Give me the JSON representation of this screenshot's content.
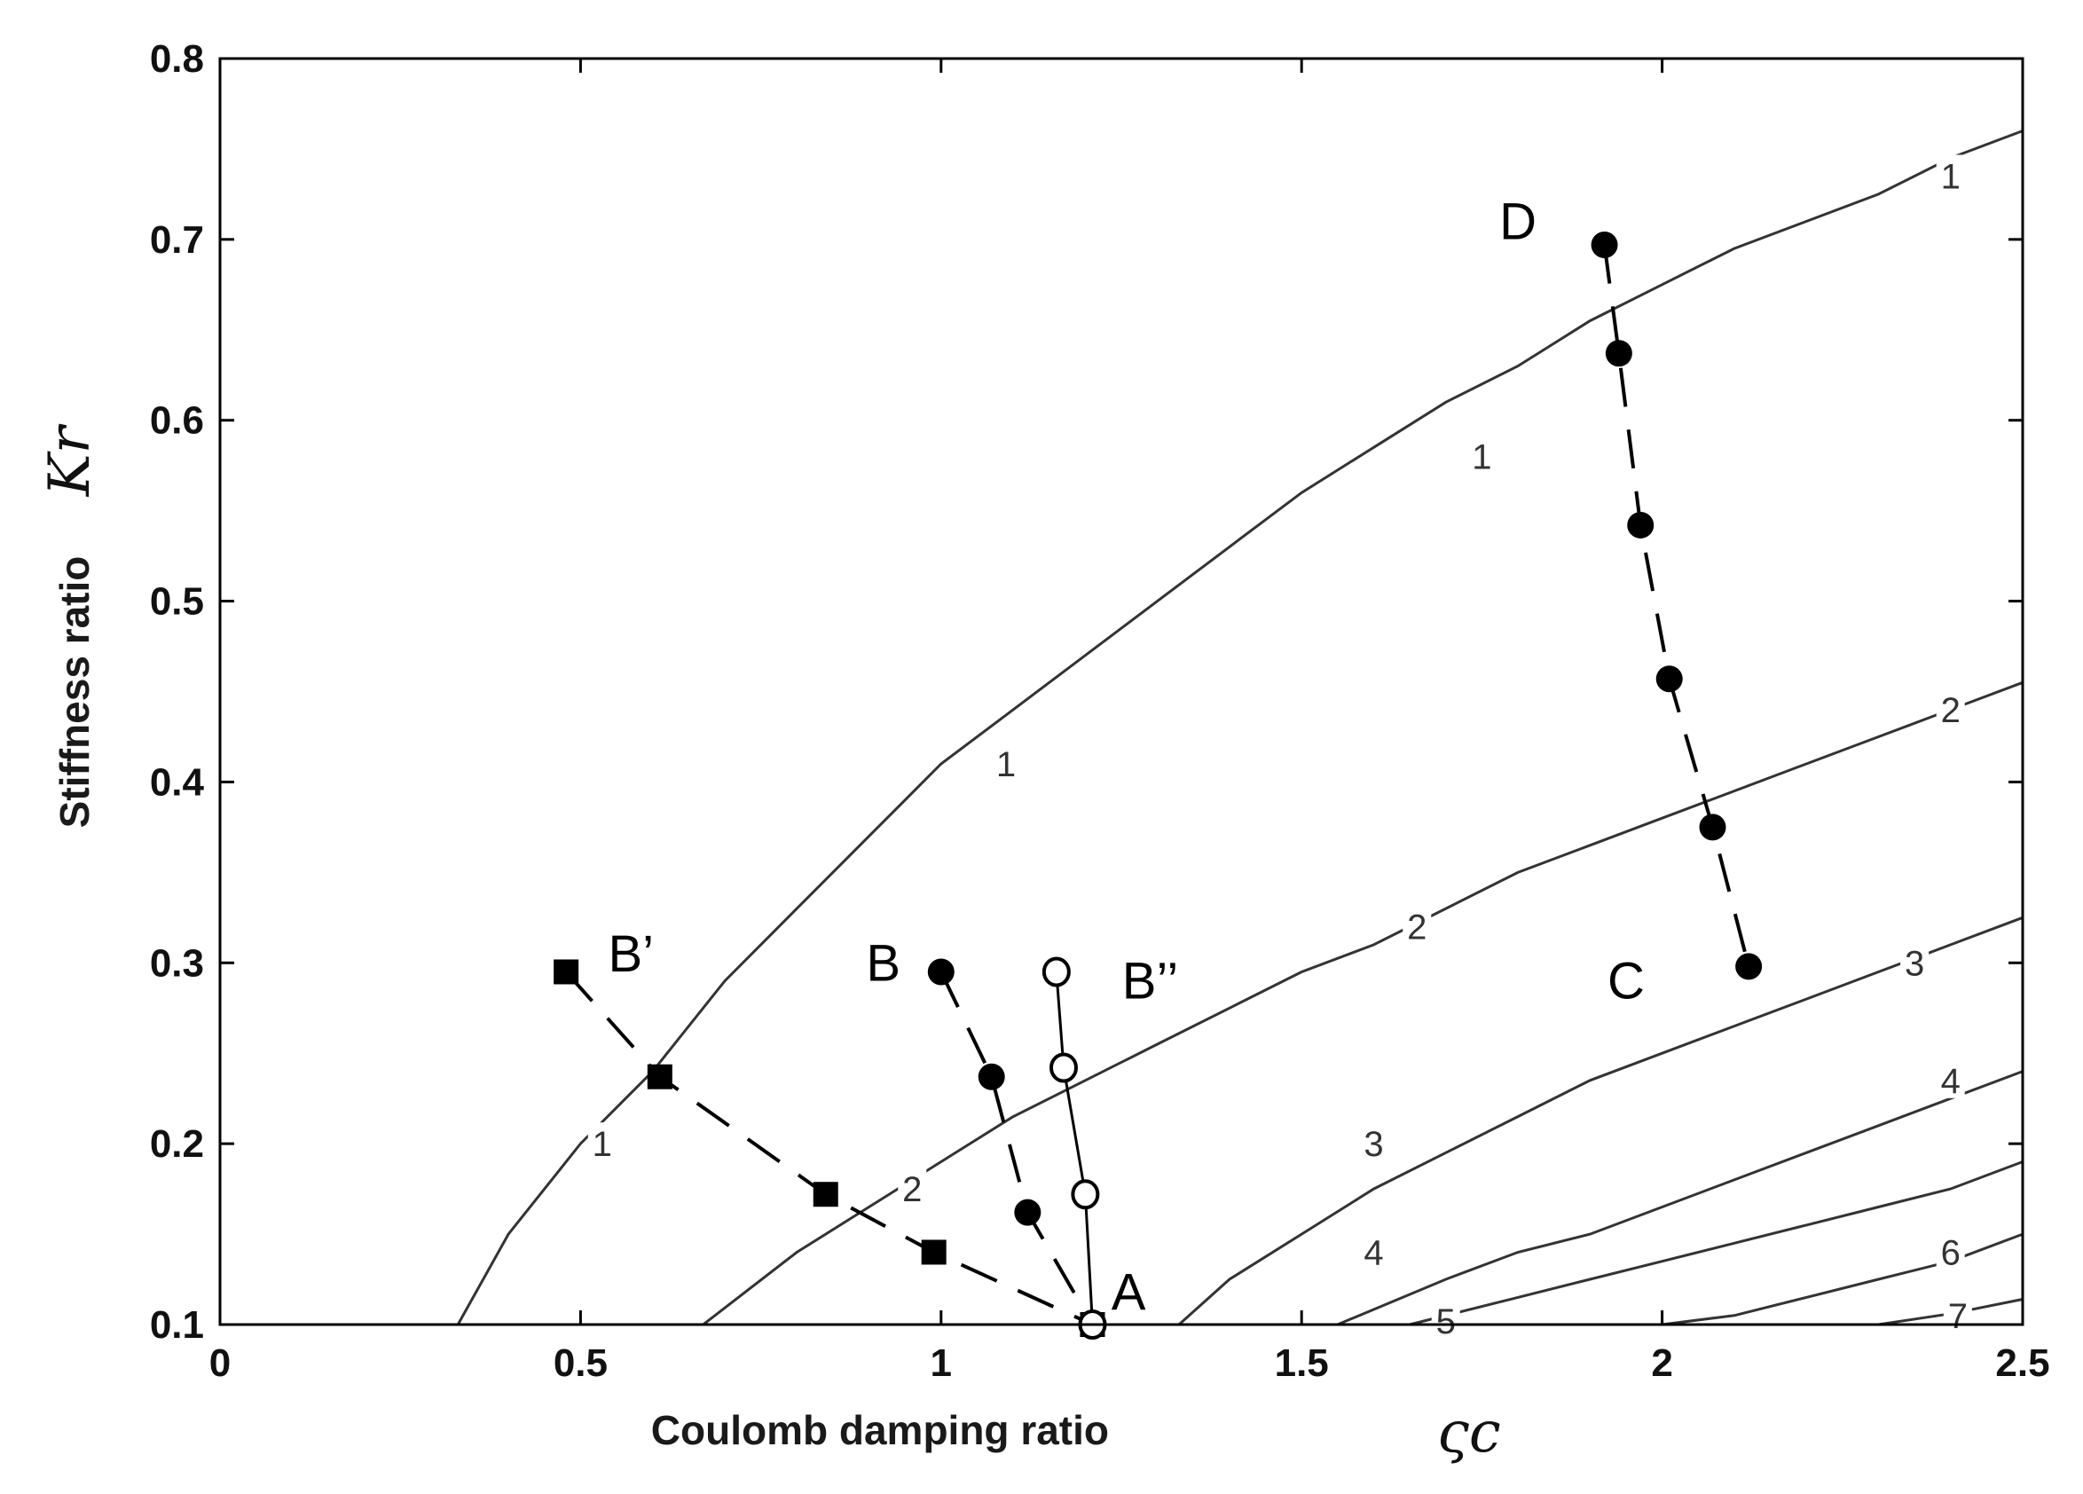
{
  "chart_data": {
    "type": "line",
    "title": "",
    "xlabel": "Coulomb damping ratio",
    "xlabel_symbol": "ςc",
    "ylabel": "Stiffness ratio",
    "ylabel_symbol": "Kr",
    "xlim": [
      0,
      2.5
    ],
    "ylim": [
      0.1,
      0.8
    ],
    "xticks": [
      0,
      0.5,
      1,
      1.5,
      2,
      2.5
    ],
    "xtick_labels": [
      "0",
      "0.5",
      "1",
      "1.5",
      "2",
      "2.5"
    ],
    "yticks": [
      0.1,
      0.2,
      0.3,
      0.4,
      0.5,
      0.6,
      0.7,
      0.8
    ],
    "ytick_labels": [
      "0.1",
      "0.2",
      "0.3",
      "0.4",
      "0.5",
      "0.6",
      "0.7",
      "0.8"
    ],
    "grid": false,
    "contours": [
      {
        "level": "1",
        "x": [
          0.33,
          0.4,
          0.5,
          0.6,
          0.7,
          0.8,
          0.9,
          1.0,
          1.1,
          1.2,
          1.3,
          1.4,
          1.5,
          1.6,
          1.7,
          1.8,
          1.9,
          2.0,
          2.1,
          2.2,
          2.3,
          2.4,
          2.5
        ],
        "y": [
          0.1,
          0.15,
          0.2,
          0.24,
          0.29,
          0.33,
          0.37,
          0.41,
          0.44,
          0.47,
          0.5,
          0.53,
          0.56,
          0.585,
          0.61,
          0.63,
          0.655,
          0.675,
          0.695,
          0.71,
          0.725,
          0.745,
          0.76
        ],
        "labels": [
          {
            "x": 0.53,
            "y": 0.2
          },
          {
            "x": 1.09,
            "y": 0.41
          },
          {
            "x": 1.75,
            "y": 0.58
          },
          {
            "x": 2.4,
            "y": 0.735
          }
        ]
      },
      {
        "level": "2",
        "x": [
          0.67,
          0.8,
          0.9,
          1.0,
          1.1,
          1.2,
          1.3,
          1.4,
          1.5,
          1.6,
          1.7,
          1.8,
          1.9,
          2.0,
          2.1,
          2.2,
          2.3,
          2.4,
          2.5
        ],
        "y": [
          0.1,
          0.14,
          0.165,
          0.19,
          0.215,
          0.235,
          0.255,
          0.275,
          0.295,
          0.31,
          0.33,
          0.35,
          0.365,
          0.38,
          0.395,
          0.41,
          0.425,
          0.44,
          0.455
        ],
        "labels": [
          {
            "x": 0.96,
            "y": 0.175
          },
          {
            "x": 1.66,
            "y": 0.32
          },
          {
            "x": 2.4,
            "y": 0.44
          }
        ]
      },
      {
        "level": "3",
        "x": [
          1.33,
          1.4,
          1.5,
          1.6,
          1.7,
          1.8,
          1.9,
          2.0,
          2.1,
          2.2,
          2.3,
          2.4,
          2.5
        ],
        "y": [
          0.1,
          0.125,
          0.15,
          0.175,
          0.195,
          0.215,
          0.235,
          0.25,
          0.265,
          0.28,
          0.295,
          0.31,
          0.325
        ],
        "labels": [
          {
            "x": 1.6,
            "y": 0.2
          },
          {
            "x": 2.35,
            "y": 0.3
          }
        ]
      },
      {
        "level": "4",
        "x": [
          1.55,
          1.7,
          1.8,
          1.9,
          2.0,
          2.1,
          2.2,
          2.3,
          2.4,
          2.5
        ],
        "y": [
          0.1,
          0.125,
          0.14,
          0.15,
          0.165,
          0.18,
          0.195,
          0.21,
          0.225,
          0.24
        ],
        "labels": [
          {
            "x": 1.6,
            "y": 0.14
          },
          {
            "x": 2.4,
            "y": 0.235
          }
        ]
      },
      {
        "level": "5",
        "x": [
          1.65,
          1.8,
          1.9,
          2.0,
          2.1,
          2.2,
          2.3,
          2.4,
          2.5
        ],
        "y": [
          0.1,
          0.115,
          0.125,
          0.135,
          0.145,
          0.155,
          0.165,
          0.175,
          0.19
        ],
        "labels": [
          {
            "x": 1.7,
            "y": 0.102
          }
        ]
      },
      {
        "level": "6",
        "x": [
          2.0,
          2.1,
          2.2,
          2.3,
          2.4,
          2.5
        ],
        "y": [
          0.1,
          0.105,
          0.115,
          0.125,
          0.135,
          0.15
        ],
        "labels": [
          {
            "x": 2.4,
            "y": 0.14
          }
        ]
      },
      {
        "level": "7",
        "x": [
          2.3,
          2.4,
          2.5
        ],
        "y": [
          0.1,
          0.106,
          0.114
        ],
        "labels": [
          {
            "x": 2.41,
            "y": 0.105
          }
        ]
      }
    ],
    "series": [
      {
        "marker": "square-filled",
        "line": "dashed",
        "x": [
          0.48,
          0.61,
          0.84,
          0.99,
          1.21
        ],
        "y": [
          0.295,
          0.237,
          0.172,
          0.14,
          0.1
        ]
      },
      {
        "marker": "circle-filled",
        "line": "dashed",
        "x": [
          1.0,
          1.07,
          1.12,
          1.21
        ],
        "y": [
          0.295,
          0.237,
          0.162,
          0.1
        ]
      },
      {
        "marker": "circle-open",
        "line": "solid",
        "x": [
          1.16,
          1.17,
          1.2,
          1.21
        ],
        "y": [
          0.295,
          0.242,
          0.172,
          0.1
        ]
      },
      {
        "marker": "circle-filled",
        "line": "dashed",
        "x": [
          1.92,
          1.94,
          1.97,
          2.01,
          2.07,
          2.12
        ],
        "y": [
          0.697,
          0.637,
          0.542,
          0.457,
          0.375,
          0.298
        ]
      }
    ],
    "point_labels": [
      {
        "text": "A",
        "x": 1.26,
        "y": 0.118
      },
      {
        "text": "B",
        "x": 0.92,
        "y": 0.3
      },
      {
        "text": "B’",
        "x": 0.57,
        "y": 0.305
      },
      {
        "text": "B’’",
        "x": 1.29,
        "y": 0.29
      },
      {
        "text": "C",
        "x": 1.95,
        "y": 0.29
      },
      {
        "text": "D",
        "x": 1.8,
        "y": 0.71
      }
    ]
  }
}
